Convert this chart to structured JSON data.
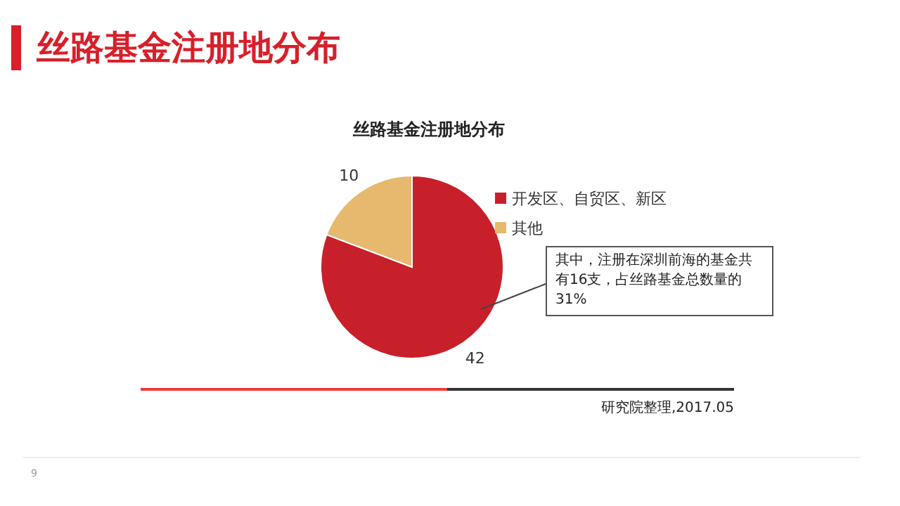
{
  "chart_data": {
    "type": "pie",
    "title": "丝路基金注册地分布",
    "categories": [
      "开发区、自贸区、新区",
      "其他"
    ],
    "values": [
      42,
      10
    ],
    "colors": [
      "#c8202a",
      "#e6b96e"
    ],
    "data_labels": true,
    "legend": "right",
    "annotations": [
      "丝路基金注册地分布",
      "其中，注册在深圳前海的基金共有16支，占丝路基金总数量的31%",
      "研究院整理,2017.05",
      "9"
    ]
  }
}
